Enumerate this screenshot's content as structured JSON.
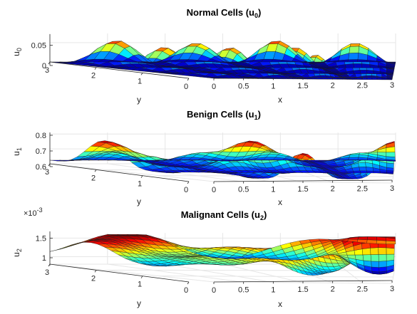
{
  "chart_data": [
    {
      "type": "surface",
      "title": "Normal Cells (u",
      "title_sub": "0",
      "title_close": ")",
      "xlabel": "x",
      "ylabel": "y",
      "zlabel": "u",
      "zlabel_sub": "0",
      "xlim": [
        0,
        3
      ],
      "ylim": [
        0,
        3
      ],
      "zlim": [
        0,
        0.07
      ],
      "x_ticks": [
        "0",
        "0.5",
        "1",
        "1.5",
        "2",
        "2.5",
        "3"
      ],
      "y_ticks": [
        "3",
        "2",
        "1",
        "0"
      ],
      "z_ticks": [
        {
          "v": 0,
          "label": "0"
        },
        {
          "v": 0.05,
          "label": "0.05"
        }
      ],
      "z_exponent": "",
      "surface": {
        "base": 0.0,
        "amp": 0.065,
        "shape": "peaks"
      },
      "colormap": "jet",
      "grid": true
    },
    {
      "type": "surface",
      "title": "Benign Cells (u",
      "title_sub": "1",
      "title_close": ")",
      "xlabel": "x",
      "ylabel": "y",
      "zlabel": "u",
      "zlabel_sub": "1",
      "xlim": [
        0,
        3
      ],
      "ylim": [
        0,
        3
      ],
      "zlim": [
        0.6,
        0.8
      ],
      "x_ticks": [
        "0",
        "0.5",
        "1",
        "1.5",
        "2",
        "2.5",
        "3"
      ],
      "y_ticks": [
        "3",
        "2",
        "1",
        "0"
      ],
      "z_ticks": [
        {
          "v": 0.6,
          "label": "0.6"
        },
        {
          "v": 0.7,
          "label": "0.7"
        },
        {
          "v": 0.8,
          "label": "0.8"
        }
      ],
      "z_exponent": "",
      "surface": {
        "base": 0.795,
        "amp": 0.19,
        "shape": "wells"
      },
      "colormap": "jet",
      "grid": true
    },
    {
      "type": "surface",
      "title": "Malignant Cells (u",
      "title_sub": "2",
      "title_close": ")",
      "xlabel": "x",
      "ylabel": "y",
      "zlabel": "u",
      "zlabel_sub": "2",
      "xlim": [
        0,
        3
      ],
      "ylim": [
        0,
        3
      ],
      "zlim": [
        0.0008,
        0.0016
      ],
      "x_ticks": [
        "0",
        "0.5",
        "1",
        "1.5",
        "2",
        "2.5",
        "3"
      ],
      "y_ticks": [
        "3",
        "2",
        "1",
        "0"
      ],
      "z_ticks": [
        {
          "v": 0.001,
          "label": "1"
        },
        {
          "v": 0.0015,
          "label": "1.5"
        }
      ],
      "z_exponent": "×10",
      "z_exponent_power": "-3",
      "surface": {
        "base": 0.0013,
        "amp": 0.0005,
        "shape": "mixed"
      },
      "colormap": "jet",
      "grid": true
    }
  ]
}
